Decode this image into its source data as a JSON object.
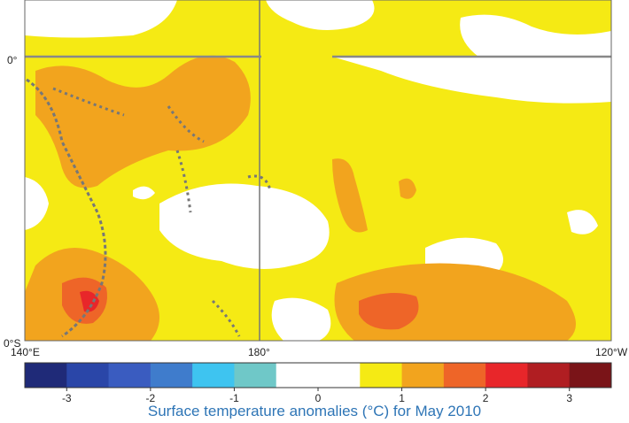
{
  "map": {
    "labels": {
      "lat_top": "0°",
      "lat_bottom": "0°S",
      "lon_left": "140°E",
      "lon_mid": "180°",
      "lon_right": "120°W"
    },
    "colorbar": {
      "colors": [
        "#1f2a78",
        "#2a46a8",
        "#3a5cc0",
        "#3f7ccc",
        "#3ec4f0",
        "#6fc8c8",
        "#ffffff",
        "#ffffff",
        "#f5ea14",
        "#f2a41e",
        "#ee6528",
        "#e8262a",
        "#b01e22",
        "#7a1418"
      ],
      "ticks": [
        "-3",
        "-2",
        "-1",
        "0",
        "1",
        "2",
        "3"
      ]
    },
    "caption": "Surface temperature anomalies (°C) for May 2010"
  }
}
